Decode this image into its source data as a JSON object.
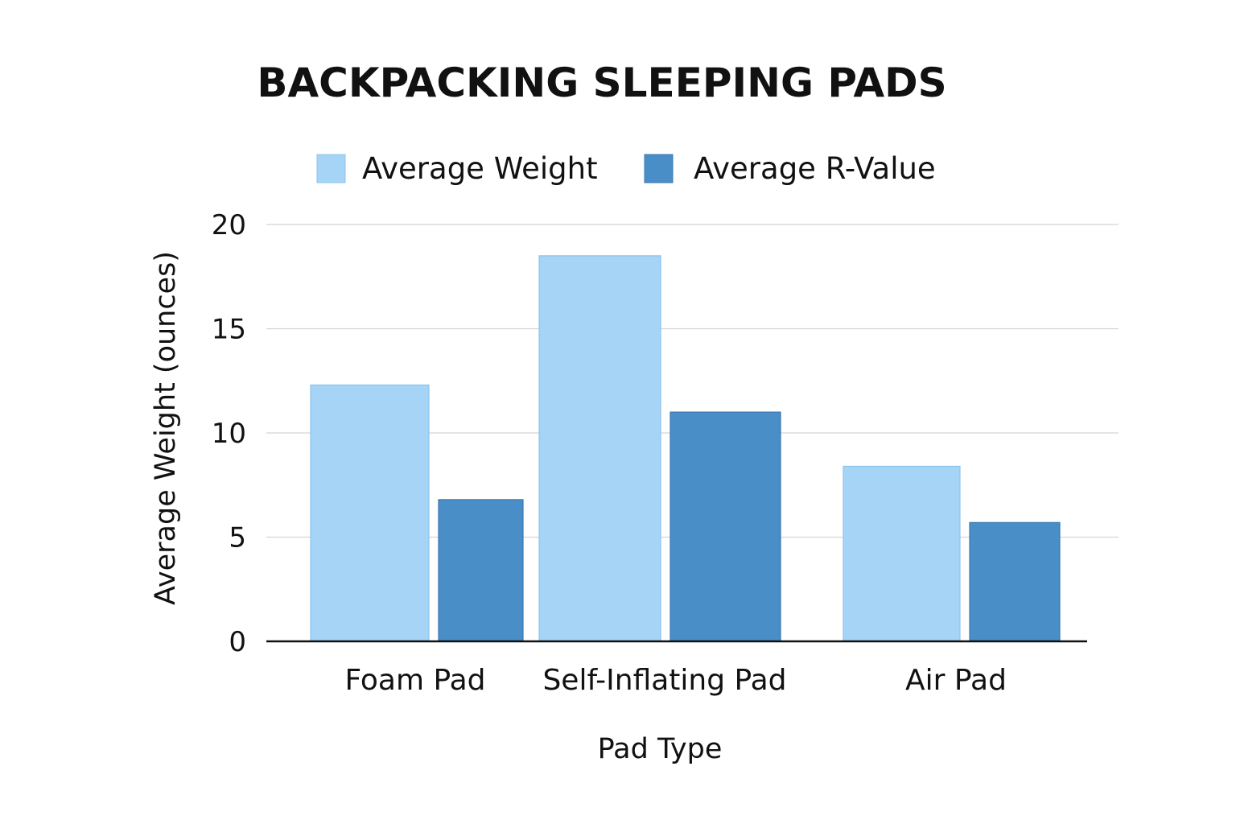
{
  "chart_data": {
    "type": "bar",
    "title": "BACKPACKING SLEEPING PADS",
    "xlabel": "Pad Type",
    "ylabel": "Average Weight (ounces)",
    "categories": [
      "Foam Pad",
      "Self-Inflating Pad",
      "Air Pad"
    ],
    "series": [
      {
        "name": "Average Weight",
        "color": "#a6d4f6",
        "values": [
          12.3,
          18.5,
          8.4
        ]
      },
      {
        "name": "Average R-Value",
        "color": "#4a8ec7",
        "values": [
          6.8,
          11.0,
          5.7
        ]
      }
    ],
    "ylim": [
      0,
      20
    ],
    "yticks": [
      "0",
      "5",
      "10",
      "15",
      "20"
    ],
    "grid": true,
    "legend_position": "top-center"
  }
}
